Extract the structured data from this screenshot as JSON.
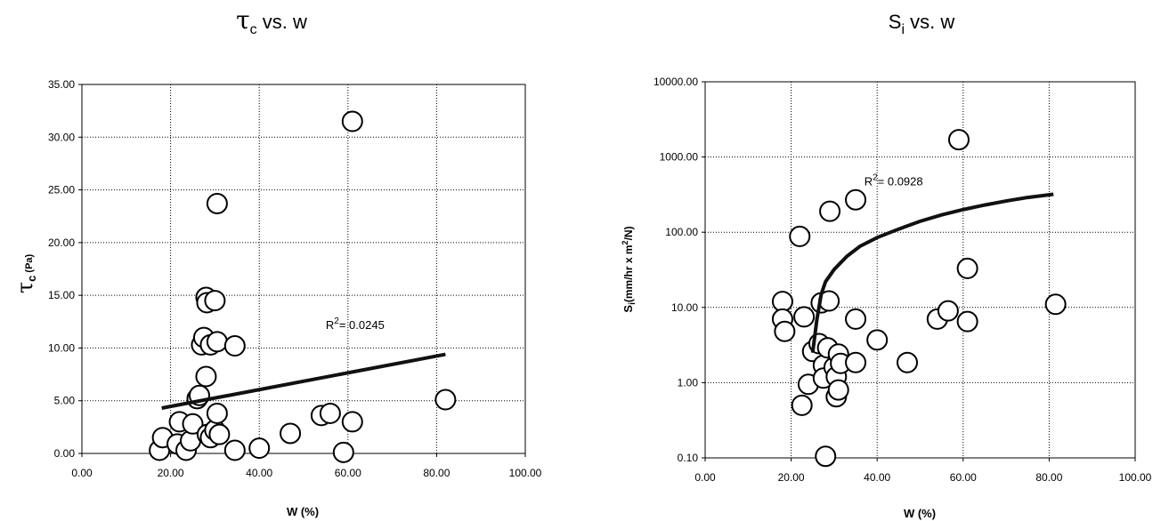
{
  "chart_data": [
    {
      "type": "scatter",
      "title": "τc vs. w",
      "title_main": "τ",
      "title_sub": "c",
      "title_rest": " vs. w",
      "xlabel": "W (%)",
      "ylabel": "τc (Pa)",
      "ylabel_main": "τ",
      "ylabel_sub": "c",
      "ylabel_rest": " (Pa)",
      "xlim": [
        0,
        100
      ],
      "ylim": [
        0,
        35
      ],
      "x_scale": "linear",
      "y_scale": "linear",
      "x_ticks": [
        "0.00",
        "20.00",
        "40.00",
        "60.00",
        "80.00",
        "100.00"
      ],
      "y_ticks": [
        "0.00",
        "5.00",
        "10.00",
        "15.00",
        "20.00",
        "25.00",
        "30.00",
        "35.00"
      ],
      "grid": true,
      "annotation": {
        "r2_prefix": "R",
        "r2_sup": "2",
        "r2_text": "= 0.0245",
        "x": 55,
        "y": 11.8
      },
      "trendline": {
        "type": "linear",
        "points": [
          [
            18,
            4.3
          ],
          [
            82,
            9.4
          ]
        ]
      },
      "points": [
        {
          "x": 17.5,
          "y": 0.3
        },
        {
          "x": 18.2,
          "y": 1.5
        },
        {
          "x": 21.5,
          "y": 0.9
        },
        {
          "x": 22.0,
          "y": 3.0
        },
        {
          "x": 23.5,
          "y": 0.3
        },
        {
          "x": 24.5,
          "y": 1.2
        },
        {
          "x": 25.0,
          "y": 2.8
        },
        {
          "x": 26.0,
          "y": 5.2
        },
        {
          "x": 26.5,
          "y": 5.5
        },
        {
          "x": 27.0,
          "y": 10.3
        },
        {
          "x": 27.5,
          "y": 11.0
        },
        {
          "x": 28.0,
          "y": 14.8
        },
        {
          "x": 28.2,
          "y": 14.3
        },
        {
          "x": 28.0,
          "y": 7.3
        },
        {
          "x": 28.3,
          "y": 1.8
        },
        {
          "x": 29.0,
          "y": 1.5
        },
        {
          "x": 29.0,
          "y": 10.3
        },
        {
          "x": 30.0,
          "y": 14.5
        },
        {
          "x": 30.0,
          "y": 2.2
        },
        {
          "x": 30.5,
          "y": 3.8
        },
        {
          "x": 30.5,
          "y": 10.6
        },
        {
          "x": 30.5,
          "y": 23.7
        },
        {
          "x": 31.0,
          "y": 1.8
        },
        {
          "x": 34.5,
          "y": 10.2
        },
        {
          "x": 34.5,
          "y": 0.3
        },
        {
          "x": 40.0,
          "y": 0.5
        },
        {
          "x": 47.0,
          "y": 1.9
        },
        {
          "x": 54.0,
          "y": 3.6
        },
        {
          "x": 56.0,
          "y": 3.8
        },
        {
          "x": 59.0,
          "y": 0.1
        },
        {
          "x": 61.0,
          "y": 31.5
        },
        {
          "x": 61.0,
          "y": 3.0
        },
        {
          "x": 82.0,
          "y": 5.1
        }
      ]
    },
    {
      "type": "scatter",
      "title": "Si vs. w",
      "title_main": "S",
      "title_sub": "i",
      "title_rest": " vs. w",
      "xlabel": "W (%)",
      "ylabel": "Si(mm/hr x m2/N)",
      "ylabel_main": "S",
      "ylabel_sub": "i",
      "ylabel_rest": "(mm/hr x m",
      "ylabel_sup": "2",
      "ylabel_end": "/N)",
      "xlim": [
        0,
        100
      ],
      "ylim": [
        0.1,
        10000
      ],
      "x_scale": "linear",
      "y_scale": "log",
      "x_ticks": [
        "0.00",
        "20.00",
        "40.00",
        "60.00",
        "80.00",
        "100.00"
      ],
      "y_ticks": [
        "0.10",
        "1.00",
        "10.00",
        "100.00",
        "1000.00",
        "10000.00"
      ],
      "grid": true,
      "annotation": {
        "r2_prefix": "R",
        "r2_sup": "2",
        "r2_text": "= 0.0928",
        "x": 37,
        "y": 420
      },
      "trendline": {
        "type": "logarithmic",
        "points": [
          [
            25,
            2.5
          ],
          [
            26,
            7
          ],
          [
            27,
            15
          ],
          [
            28,
            22
          ],
          [
            30,
            32
          ],
          [
            33,
            48
          ],
          [
            36,
            65
          ],
          [
            40,
            85
          ],
          [
            45,
            110
          ],
          [
            50,
            140
          ],
          [
            55,
            170
          ],
          [
            60,
            200
          ],
          [
            65,
            230
          ],
          [
            70,
            260
          ],
          [
            75,
            290
          ],
          [
            81,
            320
          ]
        ]
      },
      "points": [
        {
          "x": 18.0,
          "y": 12.0
        },
        {
          "x": 18.0,
          "y": 7.0
        },
        {
          "x": 18.5,
          "y": 4.8
        },
        {
          "x": 22.0,
          "y": 88.0
        },
        {
          "x": 22.5,
          "y": 0.5
        },
        {
          "x": 23.0,
          "y": 7.5
        },
        {
          "x": 24.0,
          "y": 0.95
        },
        {
          "x": 25.0,
          "y": 2.6
        },
        {
          "x": 26.5,
          "y": 3.3
        },
        {
          "x": 27.0,
          "y": 11.5
        },
        {
          "x": 27.5,
          "y": 1.7
        },
        {
          "x": 27.5,
          "y": 1.15
        },
        {
          "x": 28.0,
          "y": 0.105
        },
        {
          "x": 28.5,
          "y": 2.9
        },
        {
          "x": 28.8,
          "y": 12.2
        },
        {
          "x": 29.0,
          "y": 190.0
        },
        {
          "x": 30.0,
          "y": 1.6
        },
        {
          "x": 30.5,
          "y": 1.2
        },
        {
          "x": 30.5,
          "y": 0.65
        },
        {
          "x": 31.0,
          "y": 0.8
        },
        {
          "x": 31.0,
          "y": 2.4
        },
        {
          "x": 31.5,
          "y": 1.8
        },
        {
          "x": 35.0,
          "y": 270.0
        },
        {
          "x": 35.0,
          "y": 7.0
        },
        {
          "x": 35.0,
          "y": 1.85
        },
        {
          "x": 40.0,
          "y": 3.7
        },
        {
          "x": 47.0,
          "y": 1.85
        },
        {
          "x": 54.0,
          "y": 7.0
        },
        {
          "x": 56.5,
          "y": 9.0
        },
        {
          "x": 59.0,
          "y": 1700.0
        },
        {
          "x": 61.0,
          "y": 33.0
        },
        {
          "x": 61.0,
          "y": 6.5
        },
        {
          "x": 81.5,
          "y": 11.0
        }
      ]
    }
  ]
}
